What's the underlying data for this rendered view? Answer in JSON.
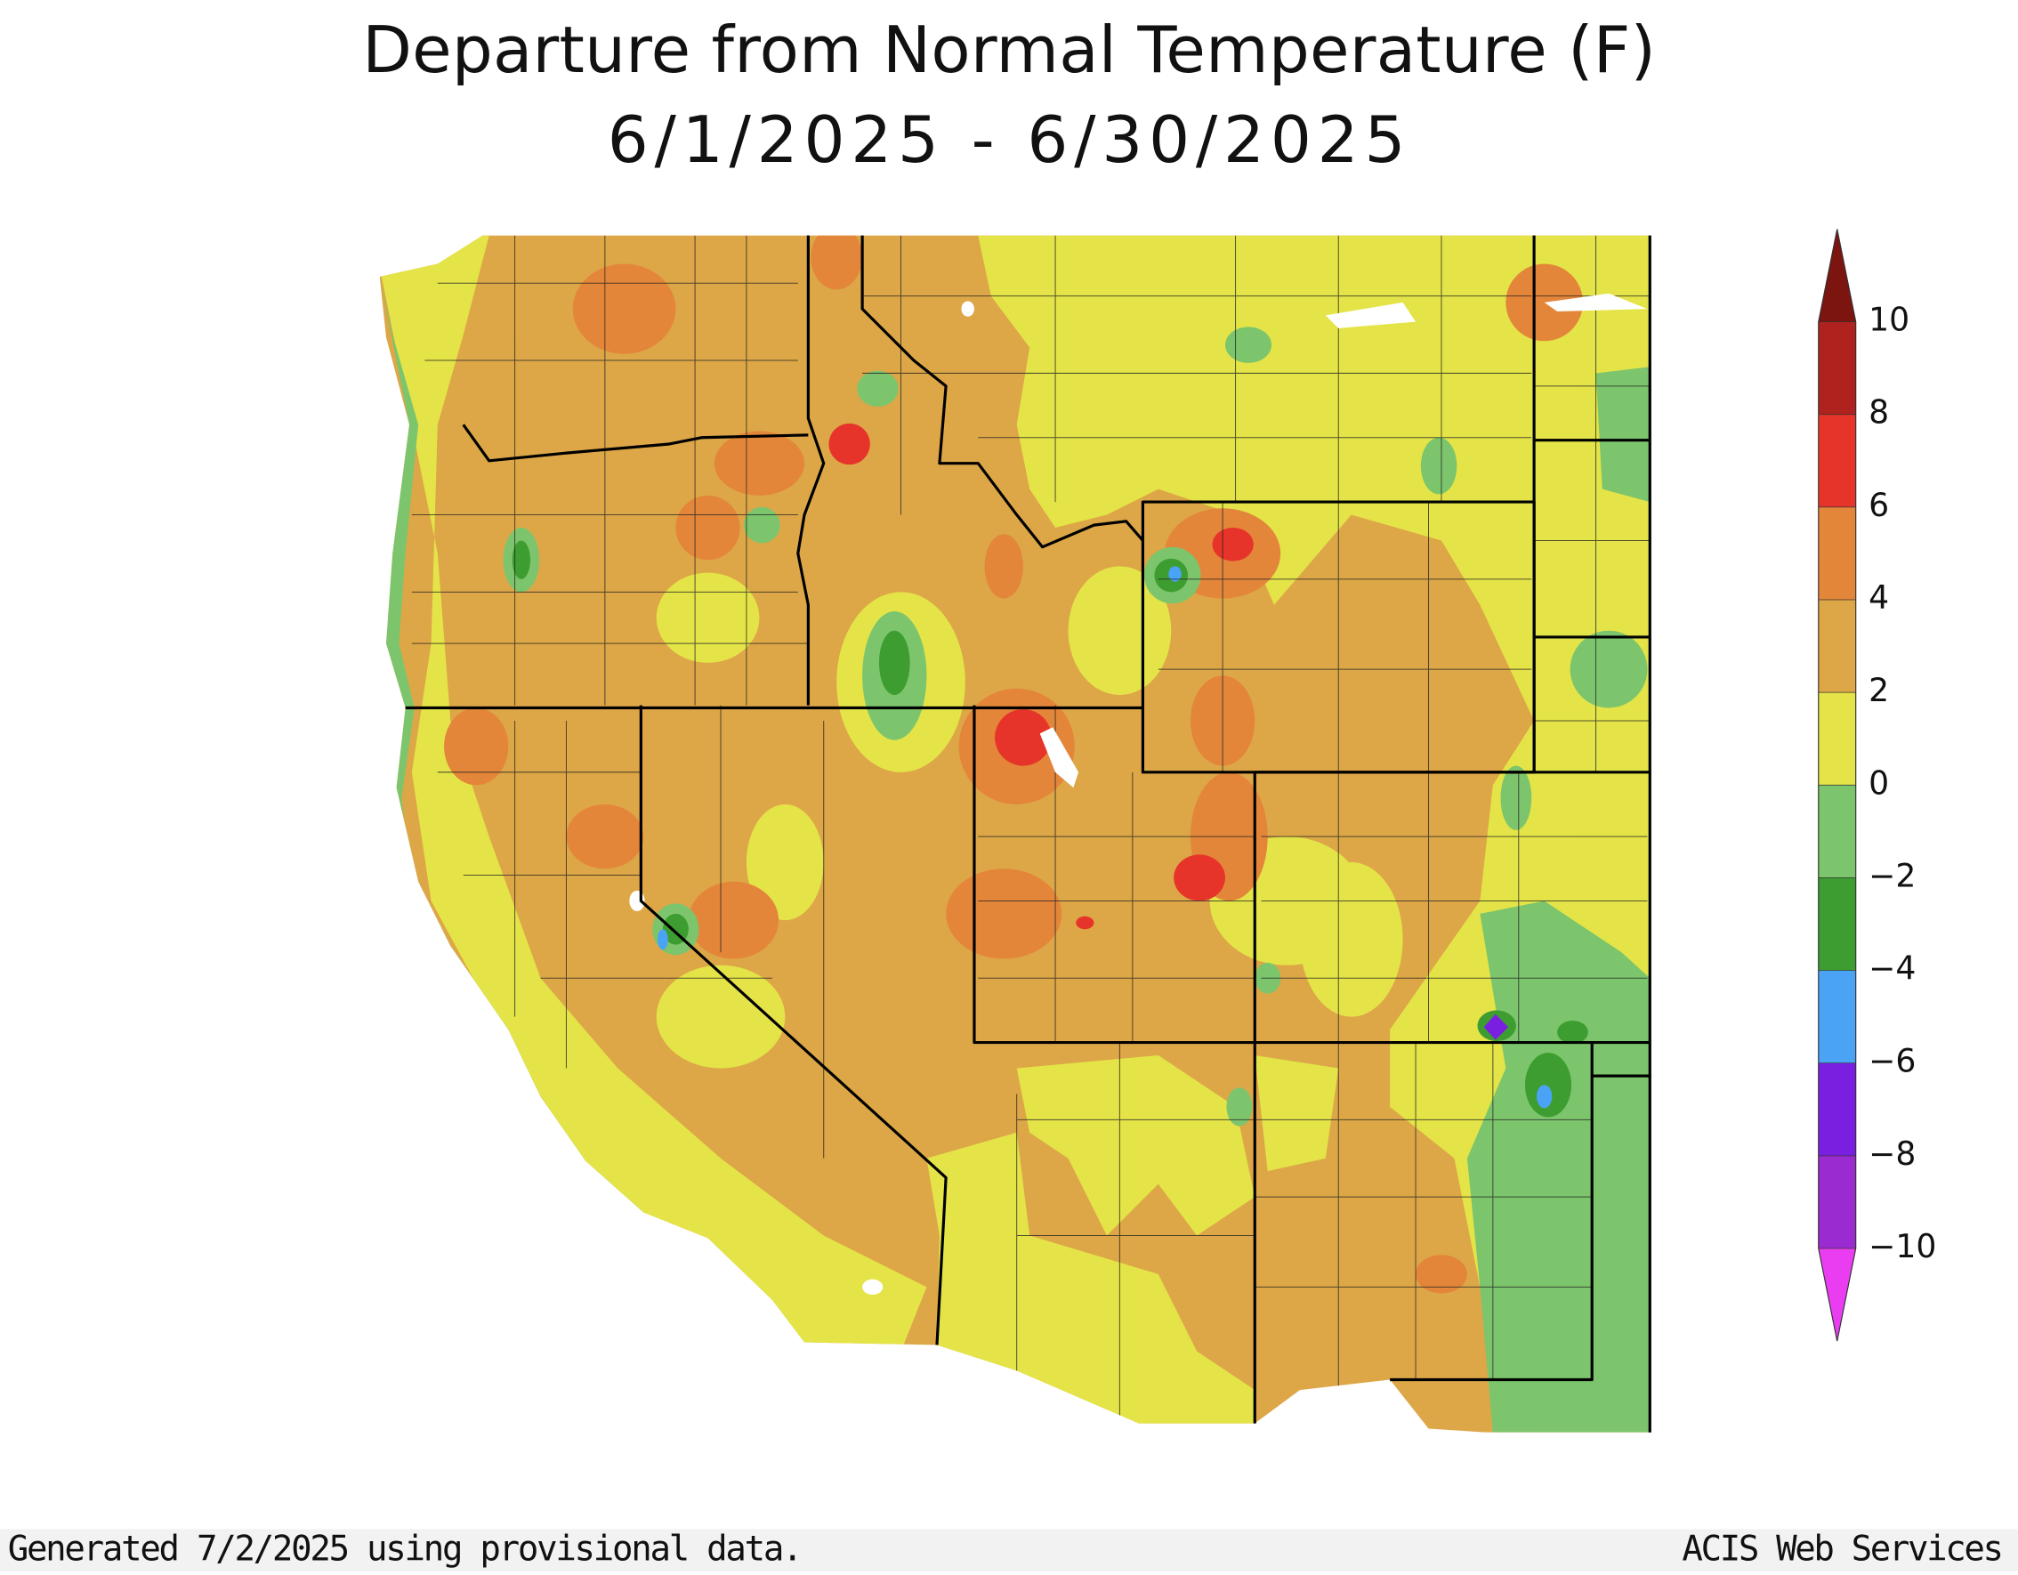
{
  "title": "Departure from Normal Temperature (F)",
  "subtitle": "6/1/2025 - 6/30/2025",
  "colorbar": {
    "range": [
      -10,
      10
    ],
    "ticks": [
      {
        "value": -10,
        "label": "−10"
      },
      {
        "value": -8,
        "label": "−8"
      },
      {
        "value": -6,
        "label": "−6"
      },
      {
        "value": -4,
        "label": "−4"
      },
      {
        "value": -2,
        "label": "−2"
      },
      0,
      2,
      4,
      6,
      8,
      10
    ],
    "colors": [
      "#9a2bd0",
      "#7a1fe0",
      "#4aa3f5",
      "#3e9d31",
      "#7cc56c",
      "#e4e448",
      "#dda747",
      "#e4863a",
      "#e6342a",
      "#b0221d"
    ],
    "under_color": "#ea3df2",
    "over_color": "#7c1410"
  },
  "footer": {
    "left": "Generated 7/2/2025 using provisional data.",
    "right": "ACIS Web Services"
  }
}
